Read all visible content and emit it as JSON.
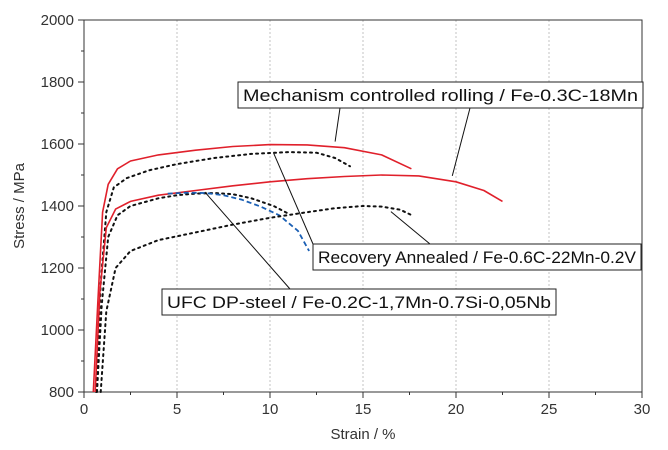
{
  "chart_data": {
    "type": "line",
    "xlabel": "Strain / %",
    "ylabel": "Stress / MPa",
    "xlim": [
      0,
      30
    ],
    "ylim": [
      800,
      2000
    ],
    "x_ticks": [
      0,
      5,
      10,
      15,
      20,
      25,
      30
    ],
    "y_ticks": [
      800,
      1000,
      1200,
      1400,
      1600,
      1800,
      2000
    ],
    "grid": "vertical dotted",
    "series": [
      {
        "color": "#e0202b",
        "style": "solid",
        "points": [
          [
            0.5,
            800
          ],
          [
            0.75,
            1100
          ],
          [
            1.0,
            1380
          ],
          [
            1.3,
            1470
          ],
          [
            1.8,
            1520
          ],
          [
            2.5,
            1545
          ],
          [
            4,
            1565
          ],
          [
            6,
            1580
          ],
          [
            8,
            1592
          ],
          [
            10,
            1598
          ],
          [
            12,
            1597
          ],
          [
            14,
            1588
          ],
          [
            16,
            1565
          ],
          [
            17.6,
            1520
          ]
        ]
      },
      {
        "color": "#111111",
        "style": "dotted",
        "points": [
          [
            0.65,
            800
          ],
          [
            0.9,
            1150
          ],
          [
            1.2,
            1380
          ],
          [
            1.6,
            1460
          ],
          [
            2.3,
            1490
          ],
          [
            3.5,
            1515
          ],
          [
            5,
            1535
          ],
          [
            7,
            1555
          ],
          [
            9,
            1568
          ],
          [
            11,
            1574
          ],
          [
            12.5,
            1572
          ],
          [
            13.5,
            1555
          ],
          [
            14.3,
            1528
          ]
        ]
      },
      {
        "color": "#e0202b",
        "style": "solid",
        "points": [
          [
            0.6,
            800
          ],
          [
            0.85,
            1120
          ],
          [
            1.2,
            1330
          ],
          [
            1.7,
            1390
          ],
          [
            2.5,
            1415
          ],
          [
            4,
            1435
          ],
          [
            6,
            1450
          ],
          [
            8,
            1465
          ],
          [
            10,
            1478
          ],
          [
            12,
            1488
          ],
          [
            14,
            1495
          ],
          [
            16,
            1500
          ],
          [
            18,
            1497
          ],
          [
            20,
            1478
          ],
          [
            21.5,
            1450
          ],
          [
            22.5,
            1415
          ]
        ]
      },
      {
        "color": "#111111",
        "style": "dotted",
        "points": [
          [
            0.7,
            800
          ],
          [
            0.95,
            1080
          ],
          [
            1.3,
            1300
          ],
          [
            1.8,
            1370
          ],
          [
            2.5,
            1400
          ],
          [
            4,
            1425
          ],
          [
            5,
            1435
          ],
          [
            6,
            1440
          ],
          [
            7,
            1442
          ],
          [
            8,
            1438
          ],
          [
            9,
            1425
          ],
          [
            10.2,
            1400
          ],
          [
            11,
            1375
          ]
        ]
      },
      {
        "color": "#1a5fb4",
        "style": "dashed",
        "points": [
          [
            4.5,
            1440
          ],
          [
            5.5,
            1443
          ],
          [
            6.5,
            1442
          ],
          [
            7.5,
            1435
          ],
          [
            8.5,
            1420
          ],
          [
            9.5,
            1398
          ],
          [
            10.5,
            1370
          ],
          [
            11.5,
            1320
          ],
          [
            12.1,
            1255
          ]
        ]
      },
      {
        "color": "#111111",
        "style": "dotted",
        "points": [
          [
            0.9,
            800
          ],
          [
            1.2,
            1060
          ],
          [
            1.7,
            1200
          ],
          [
            2.5,
            1255
          ],
          [
            4,
            1290
          ],
          [
            6,
            1315
          ],
          [
            8,
            1340
          ],
          [
            10,
            1362
          ],
          [
            12,
            1380
          ],
          [
            13.5,
            1393
          ],
          [
            15,
            1400
          ],
          [
            16,
            1398
          ],
          [
            17,
            1388
          ],
          [
            17.7,
            1368
          ]
        ]
      }
    ],
    "annotations": [
      {
        "text": "Mechanism controlled rolling / Fe-0.3C-18Mn",
        "pointers": [
          [
            13.5,
            1608
          ],
          [
            19.8,
            1497
          ]
        ]
      },
      {
        "text": "Recovery Annealed / Fe-0.6C-22Mn-0.2V",
        "pointers": [
          [
            10.2,
            1570
          ],
          [
            16.5,
            1382
          ]
        ]
      },
      {
        "text": "UFC DP-steel / Fe-0.2C-1,7Mn-0.7Si-0,05Nb",
        "pointers": [
          [
            6.5,
            1445
          ]
        ]
      }
    ]
  }
}
